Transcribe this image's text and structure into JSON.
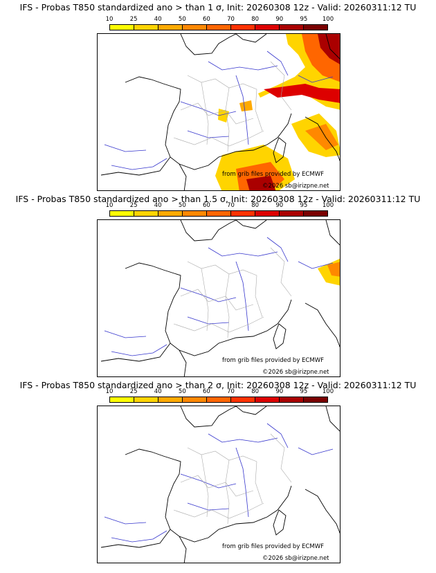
{
  "panels": [
    {
      "title": "IFS - Probas T850  standardized ano > than 1 σ, Init: 20260308 12z - Valid: 20260311:12 TU",
      "threshold": "1 σ"
    },
    {
      "title": "IFS - Probas T850  standardized ano > than 1.5 σ, Init: 20260308 12z - Valid: 20260311:12 TU",
      "threshold": "1.5 σ"
    },
    {
      "title": "IFS - Probas T850  standardized ano > than 2 σ, Init: 20260308 12z - Valid: 20260311:12 TU",
      "threshold": "2 σ"
    }
  ],
  "legend": {
    "ticks": [
      "10",
      "25",
      "40",
      "50",
      "60",
      "70",
      "80",
      "90",
      "95",
      "100"
    ],
    "colors": [
      "#ffff00",
      "#ffd400",
      "#ffaa00",
      "#ff8800",
      "#ff6600",
      "#ff3300",
      "#dd0000",
      "#aa0000",
      "#7a0000"
    ]
  },
  "credits": {
    "source": "from grib files provided by ECMWF",
    "copyright": "©2026 sb@irizpne.net"
  }
}
